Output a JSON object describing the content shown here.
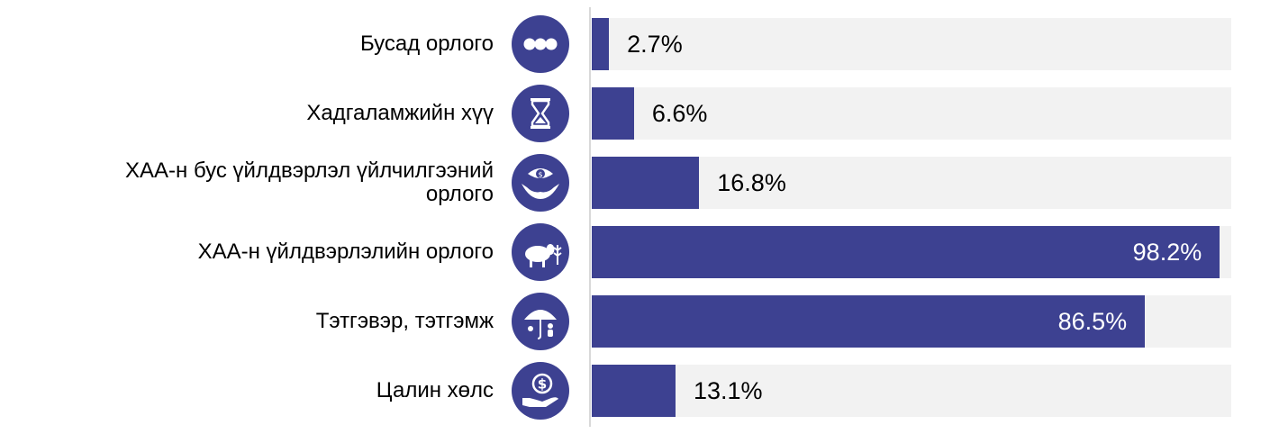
{
  "chart_data": {
    "type": "bar",
    "orientation": "horizontal",
    "categories": [
      "Бусад орлого",
      "Хадгаламжийн хүү",
      "ХАА-н бус үйлдвэрлэл үйлчилгээний орлого",
      "ХАА-н үйлдвэрлэлийн орлого",
      "Тэтгэвэр, тэтгэмж",
      "Цалин хөлс"
    ],
    "category_lines": [
      [
        "Бусад орлого"
      ],
      [
        "Хадгаламжийн хүү"
      ],
      [
        "ХАА-н бус үйлдвэрлэл үйлчилгээний",
        "орлого"
      ],
      [
        "ХАА-н үйлдвэрлэлийн орлого"
      ],
      [
        "Тэтгэвэр, тэтгэмж"
      ],
      [
        "Цалин хөлс"
      ]
    ],
    "values": [
      2.7,
      6.6,
      16.8,
      98.2,
      86.5,
      13.1
    ],
    "value_labels": [
      "2.7%",
      "6.6%",
      "16.8%",
      "98.2%",
      "86.5%",
      "13.1%"
    ],
    "icons": [
      "more-dots-icon",
      "hourglass-icon",
      "coin-hands-icon",
      "sheep-icon",
      "umbrella-family-icon",
      "coin-hand-icon"
    ],
    "xlim": [
      0,
      100
    ],
    "unit": "%",
    "grid": false,
    "colors": {
      "bar": "#3d4191",
      "track": "#f2f2f2",
      "icon_bg": "#3d4191"
    }
  }
}
